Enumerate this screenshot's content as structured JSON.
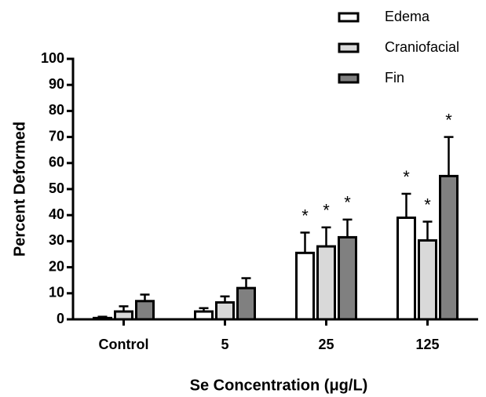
{
  "chart_data": {
    "type": "bar",
    "x_label": "Se Concentration (μg/L)",
    "y_label": "Percent Deformed",
    "categories": [
      "Control",
      "5",
      "25",
      "125"
    ],
    "series": [
      {
        "name": "Edema",
        "color": "#ffffff",
        "values": [
          0.5,
          3,
          25.5,
          39
        ],
        "errors": [
          0.5,
          1.3,
          7.8,
          9.2
        ],
        "significance": [
          null,
          null,
          "*",
          "*"
        ]
      },
      {
        "name": "Craniofacial",
        "color": "#d9d9d9",
        "values": [
          3,
          6.5,
          28,
          30.3
        ],
        "errors": [
          2,
          2.3,
          7.3,
          7.2
        ],
        "significance": [
          null,
          null,
          "*",
          "*"
        ]
      },
      {
        "name": "Fin",
        "color": "#808080",
        "values": [
          7,
          12,
          31.5,
          55
        ],
        "errors": [
          2.5,
          3.8,
          6.8,
          15
        ],
        "significance": [
          null,
          null,
          "*",
          "*"
        ]
      }
    ],
    "ylim": [
      0,
      100
    ],
    "yticks": [
      0,
      10,
      20,
      30,
      40,
      50,
      60,
      70,
      80,
      90,
      100
    ],
    "legend": "upper right"
  }
}
